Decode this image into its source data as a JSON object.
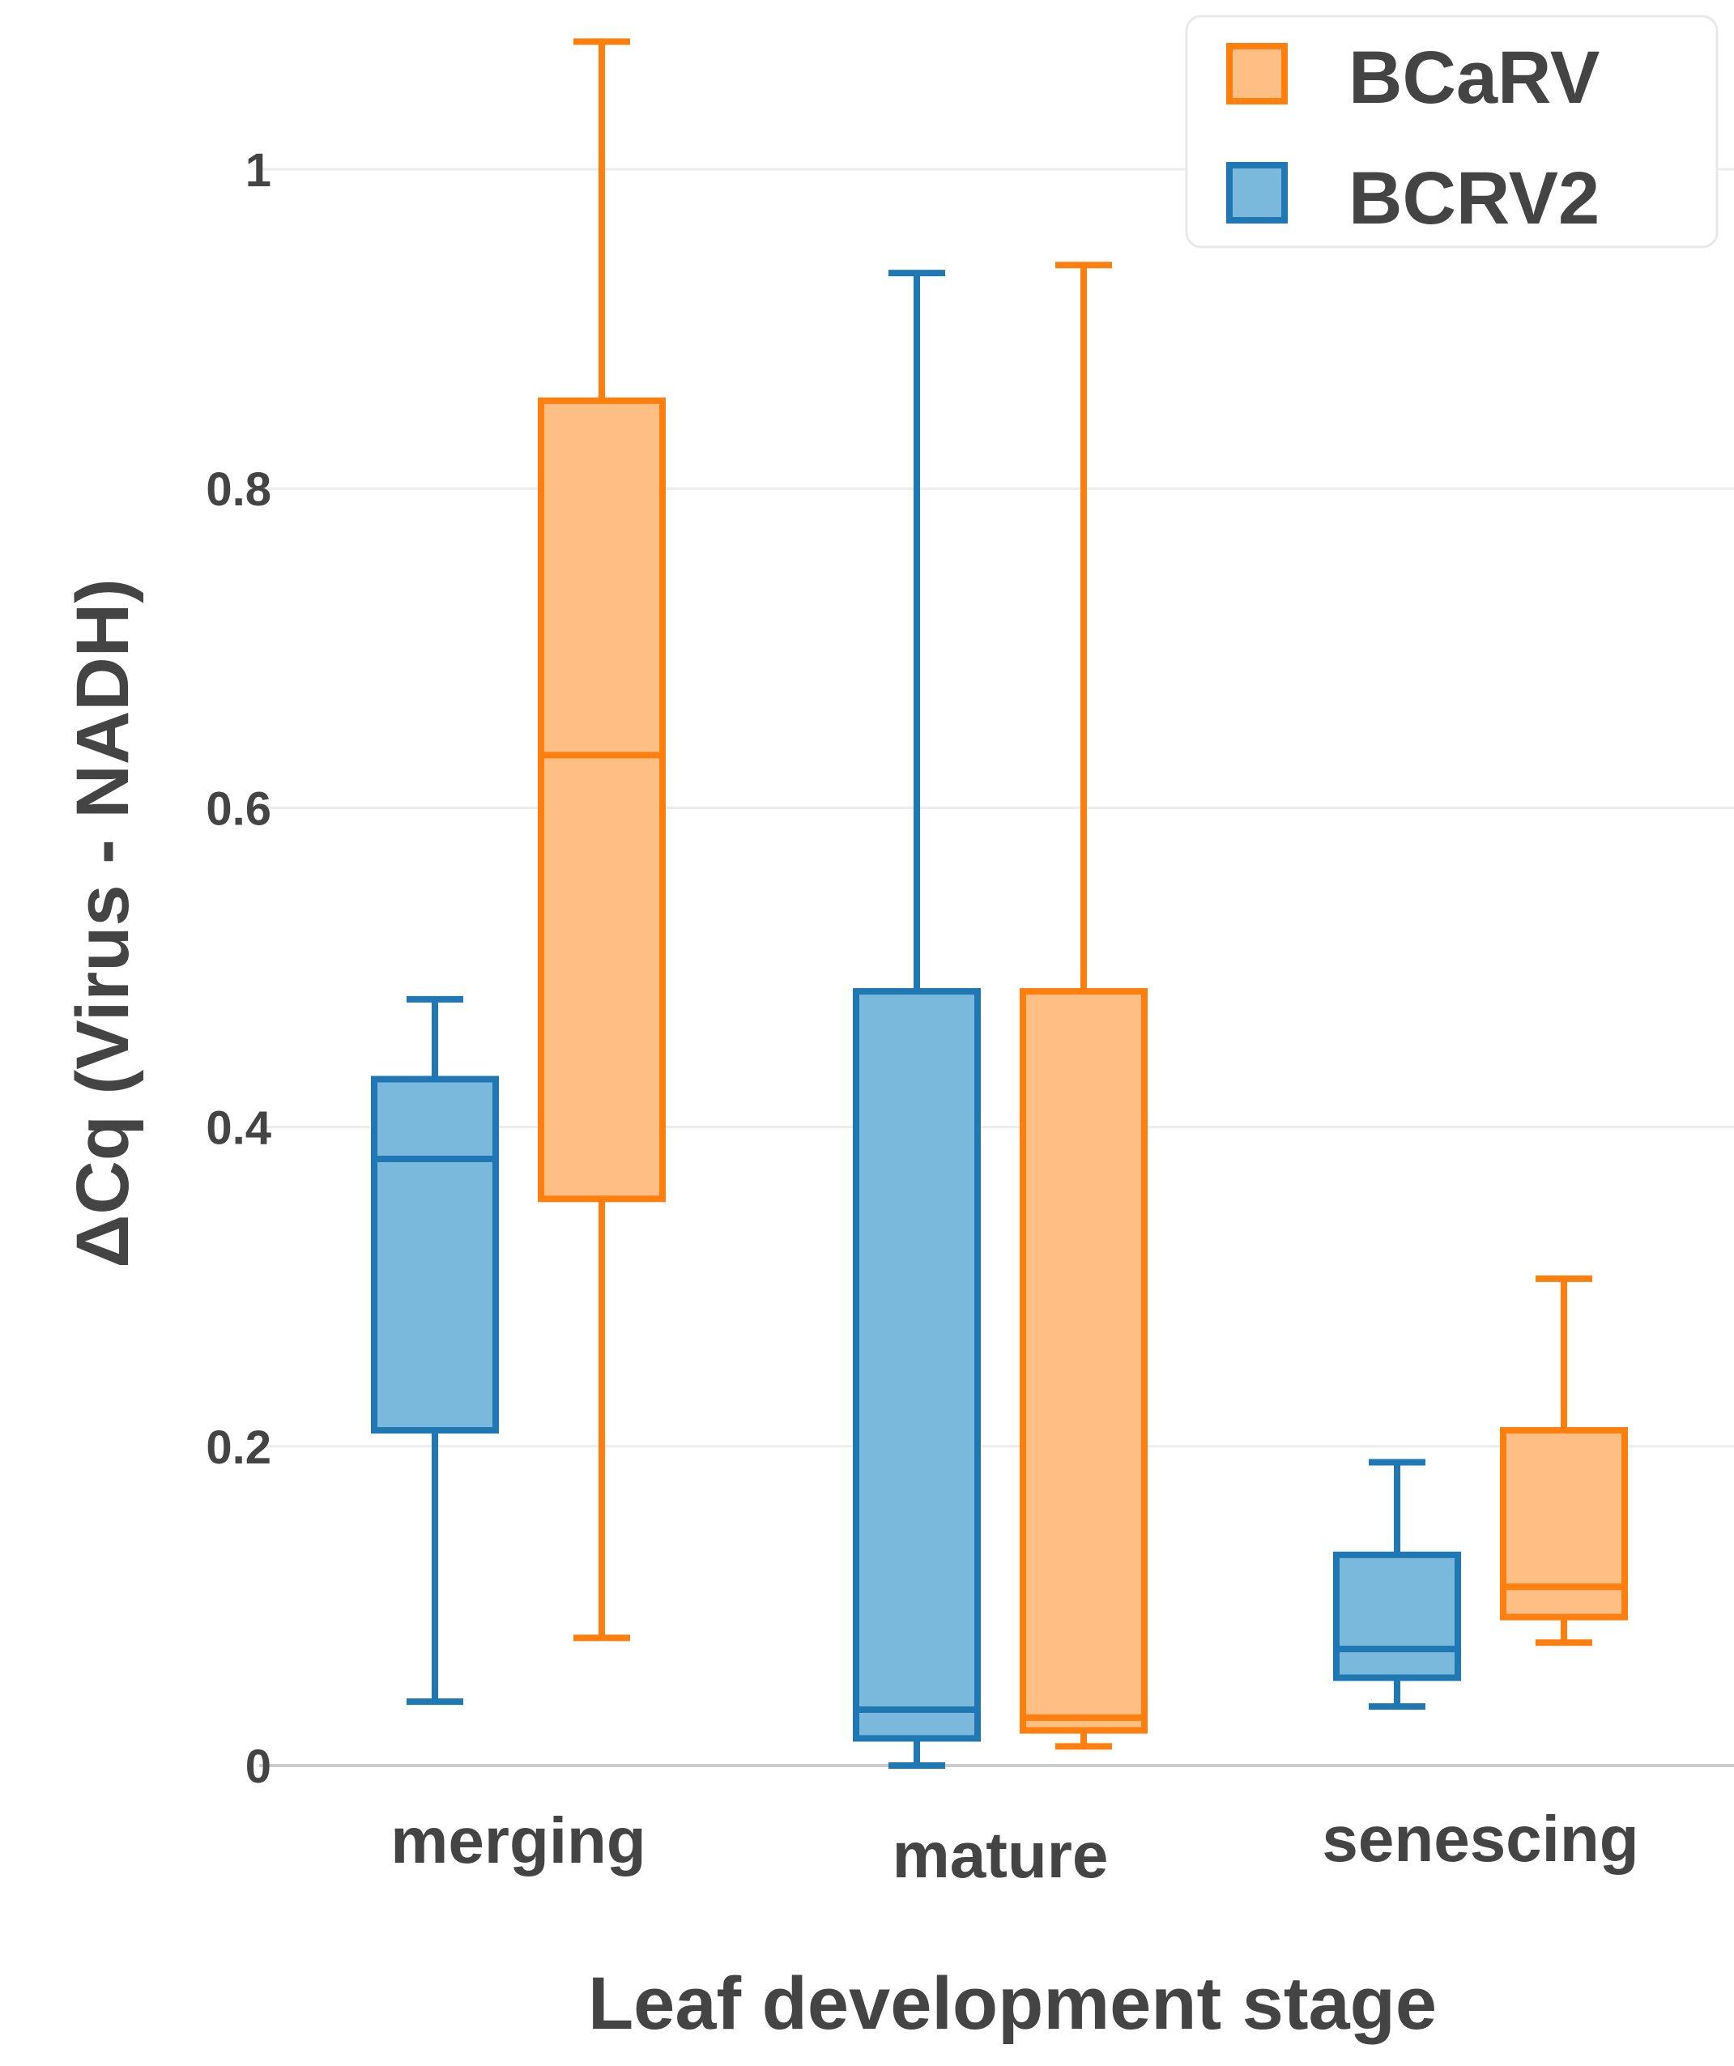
{
  "chart_data": {
    "type": "box",
    "title": "",
    "xlabel": "Leaf development stage",
    "ylabel": "ΔCq (Virus - NADH)",
    "ylim": [
      0,
      1.1
    ],
    "yticks": [
      0,
      0.2,
      0.4,
      0.6,
      0.8,
      1
    ],
    "ytick_labels": [
      "0",
      "0.2",
      "0.4",
      "0.6",
      "0.8",
      "1"
    ],
    "categories": [
      "merging",
      "mature",
      "senescing"
    ],
    "grid": true,
    "legend_position": "top-right",
    "series": [
      {
        "name": "BCRV2",
        "color": "#1f77b4",
        "fill": "#7ab8dc",
        "boxes": [
          {
            "min": 0.04,
            "q1": 0.21,
            "median": 0.38,
            "q3": 0.43,
            "max": 0.48
          },
          {
            "min": 0.0,
            "q1": 0.017,
            "median": 0.035,
            "q3": 0.485,
            "max": 0.935
          },
          {
            "min": 0.037,
            "q1": 0.055,
            "median": 0.073,
            "q3": 0.132,
            "max": 0.19
          }
        ]
      },
      {
        "name": "BCaRV",
        "color": "#ff7f0e",
        "fill": "#ffbe84",
        "boxes": [
          {
            "min": 0.08,
            "q1": 0.355,
            "median": 0.633,
            "q3": 0.855,
            "max": 1.08
          },
          {
            "min": 0.012,
            "q1": 0.022,
            "median": 0.03,
            "q3": 0.485,
            "max": 0.94
          },
          {
            "min": 0.077,
            "q1": 0.093,
            "median": 0.112,
            "q3": 0.21,
            "max": 0.305
          }
        ]
      }
    ],
    "legend": [
      "BCaRV",
      "BCRV2"
    ]
  }
}
